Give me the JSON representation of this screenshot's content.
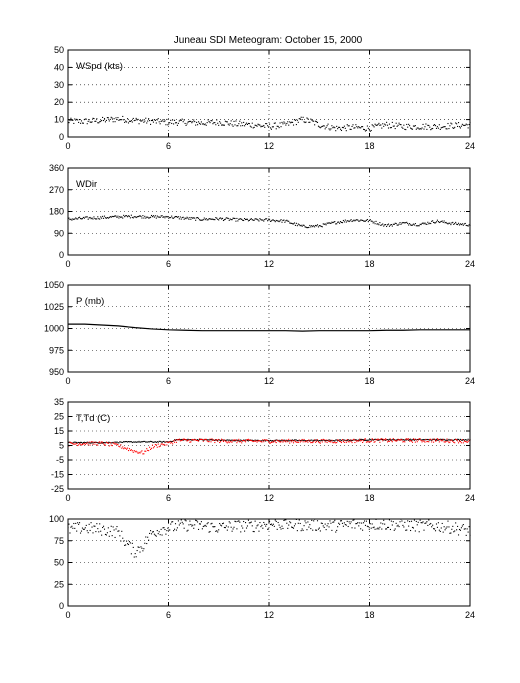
{
  "figure": {
    "title": "Juneau SDI Meteogram:    October 15, 2000"
  },
  "chart_data": [
    {
      "type": "scatter",
      "panel_label": "WSpd (kts)",
      "xlim": [
        0,
        24
      ],
      "x_ticks": [
        0,
        6,
        12,
        18,
        24
      ],
      "ylim": [
        0,
        50
      ],
      "y_ticks": [
        0,
        10,
        20,
        30,
        40,
        50
      ],
      "grid": true,
      "series": [
        {
          "color": "#000000",
          "x": [
            0,
            1,
            2,
            3,
            4,
            5,
            6,
            7,
            8,
            9,
            10,
            11,
            12,
            13,
            14,
            14.5,
            15,
            16,
            17,
            18,
            19,
            20,
            21,
            22,
            23,
            24
          ],
          "y": [
            9,
            9,
            9.5,
            10.5,
            9.5,
            9,
            8.5,
            8.5,
            8,
            8.5,
            7.5,
            7,
            6,
            7,
            10,
            9,
            7,
            5,
            5.5,
            5,
            7,
            6,
            6,
            6,
            6.5,
            7
          ],
          "spread": 1.8
        }
      ]
    },
    {
      "type": "scatter",
      "panel_label": "WDir",
      "xlim": [
        0,
        24
      ],
      "x_ticks": [
        0,
        6,
        12,
        18,
        24
      ],
      "ylim": [
        0,
        360
      ],
      "y_ticks": [
        0,
        90,
        180,
        270,
        360
      ],
      "grid": true,
      "series": [
        {
          "color": "#000000",
          "x": [
            0,
            1,
            2,
            3,
            4,
            5,
            6,
            7,
            8,
            9,
            10,
            11,
            12,
            13,
            14,
            15,
            16,
            17,
            18,
            19,
            20,
            21,
            22,
            23,
            24
          ],
          "y": [
            148,
            152,
            155,
            158,
            160,
            158,
            158,
            152,
            148,
            150,
            146,
            145,
            145,
            140,
            118,
            120,
            135,
            145,
            142,
            122,
            132,
            126,
            140,
            130,
            125
          ],
          "spread": 6
        }
      ]
    },
    {
      "type": "line",
      "panel_label": "P (mb)",
      "xlim": [
        0,
        24
      ],
      "x_ticks": [
        0,
        6,
        12,
        18,
        24
      ],
      "ylim": [
        950,
        1050
      ],
      "y_ticks": [
        950,
        975,
        1000,
        1025,
        1050
      ],
      "grid": true,
      "series": [
        {
          "color": "#000000",
          "x": [
            0,
            1,
            2,
            3,
            4,
            5,
            6,
            7,
            8,
            9,
            10,
            11,
            12,
            13,
            14,
            15,
            16,
            17,
            18,
            19,
            20,
            21,
            22,
            23,
            24
          ],
          "y": [
            1005,
            1005,
            1004,
            1003,
            1001,
            999.5,
            998.5,
            998,
            997.5,
            997.5,
            997.5,
            997.5,
            997.5,
            997.5,
            997,
            997.5,
            997.5,
            997.5,
            997.5,
            998,
            998,
            998.5,
            998.5,
            998.5,
            998.5
          ],
          "spread": 0
        }
      ]
    },
    {
      "type": "scatter",
      "panel_label": "T,Td (C)",
      "xlim": [
        0,
        24
      ],
      "x_ticks": [
        0,
        6,
        12,
        18,
        24
      ],
      "ylim": [
        -25,
        35
      ],
      "y_ticks": [
        -25,
        -15,
        -5,
        5,
        15,
        25,
        35
      ],
      "grid": true,
      "series": [
        {
          "color": "#000000",
          "x": [
            0,
            2,
            4,
            6,
            6.5,
            8,
            10,
            12,
            14,
            16,
            18,
            20,
            22,
            24
          ],
          "y": [
            7,
            7,
            7.5,
            7.5,
            9,
            9,
            8.5,
            8.5,
            8.5,
            8.5,
            9,
            9,
            9,
            9
          ],
          "spread": 0.4
        },
        {
          "color": "#ff0000",
          "x": [
            0,
            1,
            2,
            3,
            3.5,
            4,
            4.5,
            5,
            5.5,
            6,
            6.5,
            8,
            10,
            12,
            14,
            16,
            18,
            20,
            22,
            24
          ],
          "y": [
            6,
            6.5,
            6.5,
            5,
            3,
            1,
            0,
            4,
            5.5,
            6.5,
            8.5,
            8.5,
            8,
            8,
            8,
            8,
            8.5,
            8.5,
            8.5,
            8
          ],
          "spread": 1.3
        }
      ]
    },
    {
      "type": "scatter",
      "panel_label": "",
      "xlim": [
        0,
        24
      ],
      "x_ticks": [
        0,
        6,
        12,
        18,
        24
      ],
      "ylim": [
        0,
        100
      ],
      "y_ticks": [
        0,
        25,
        50,
        75,
        100
      ],
      "grid": true,
      "series": [
        {
          "color": "#000000",
          "x": [
            0,
            1,
            2,
            3,
            3.5,
            4,
            4.5,
            5,
            5.5,
            6,
            7,
            8,
            9,
            10,
            11,
            12,
            13,
            14,
            15,
            16,
            17,
            18,
            19,
            20,
            21,
            22,
            23,
            24
          ],
          "y": [
            88,
            90,
            88,
            85,
            72,
            62,
            70,
            84,
            88,
            90,
            93,
            92,
            90,
            92,
            92,
            94,
            94,
            93,
            93,
            92,
            94,
            94,
            94,
            93,
            92,
            92,
            90,
            86
          ],
          "spread": 7
        }
      ]
    }
  ]
}
